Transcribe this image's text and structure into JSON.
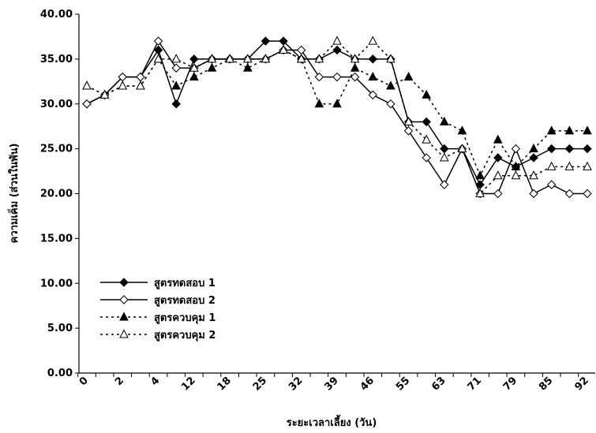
{
  "chart_data": {
    "type": "line",
    "x_label": "ระยะเวลาเลี้ยง (วัน)",
    "y_label": "ความเค็ม (ส่วนในพัน)",
    "categories": [
      "0",
      null,
      "2",
      null,
      "4",
      null,
      "12",
      null,
      "18",
      null,
      "25",
      null,
      "32",
      null,
      "39",
      null,
      "46",
      null,
      "55",
      null,
      "63",
      null,
      "71",
      null,
      "79",
      null,
      "85",
      null,
      "92"
    ],
    "ylim": [
      0,
      40
    ],
    "yticks": [
      {
        "value": 0,
        "label": "0.00"
      },
      {
        "value": 5,
        "label": "5.00"
      },
      {
        "value": 10,
        "label": "10.00"
      },
      {
        "value": 15,
        "label": "15.00"
      },
      {
        "value": 20,
        "label": "20.00"
      },
      {
        "value": 25,
        "label": "25.00"
      },
      {
        "value": 30,
        "label": "30.00"
      },
      {
        "value": 35,
        "label": "35.00"
      },
      {
        "value": 40,
        "label": "40.00"
      }
    ],
    "grid": false,
    "legend": "lower left",
    "series": [
      {
        "name": "สูตรทดสอบ 1",
        "color": "#000000",
        "dash": "solid",
        "marker": "filled-diamond",
        "values": [
          30,
          31,
          33,
          33,
          36,
          30,
          35,
          35,
          35,
          35,
          37,
          37,
          35,
          35,
          36,
          35,
          35,
          35,
          28,
          28,
          25,
          25,
          21,
          24,
          23,
          24,
          25,
          25,
          25
        ]
      },
      {
        "name": "สูตรทดสอบ 2",
        "color": "#000000",
        "dash": "solid",
        "marker": "hollow-diamond",
        "values": [
          30,
          31,
          33,
          33,
          37,
          34,
          34,
          35,
          35,
          35,
          35,
          36,
          36,
          33,
          33,
          33,
          31,
          30,
          27,
          24,
          21,
          25,
          20,
          20,
          25,
          20,
          21,
          20,
          20
        ]
      },
      {
        "name": "สูตรควบคุม 1",
        "color": "#000000",
        "dash": "dotted",
        "marker": "filled-triangle",
        "values": [
          32,
          31,
          32,
          32,
          35,
          32,
          33,
          34,
          35,
          34,
          35,
          36,
          35,
          30,
          30,
          34,
          33,
          32,
          33,
          31,
          28,
          27,
          22,
          26,
          23,
          25,
          27,
          27,
          27
        ]
      },
      {
        "name": "สูตรควบคุม 2",
        "color": "#000000",
        "dash": "dotted",
        "marker": "hollow-triangle",
        "values": [
          32,
          31,
          32,
          32,
          35,
          35,
          34,
          35,
          35,
          35,
          35,
          36,
          35,
          35,
          37,
          35,
          37,
          35,
          28,
          26,
          24,
          25,
          20,
          22,
          22,
          22,
          23,
          23,
          23
        ]
      }
    ]
  }
}
